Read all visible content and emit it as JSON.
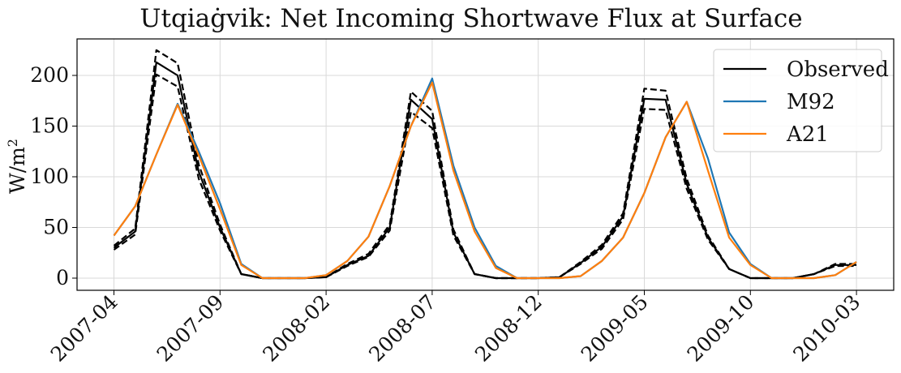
{
  "chart_data": {
    "type": "line",
    "title": "Utqiaġvik: Net Incoming Shortwave Flux at Surface",
    "xlabel": "",
    "ylabel_base": "W/m",
    "ylabel_sup": "2",
    "x_ticks": [
      "2007-04",
      "2007-09",
      "2008-02",
      "2008-07",
      "2008-12",
      "2009-05",
      "2009-10",
      "2010-03"
    ],
    "x": [
      "2007-04",
      "2007-05",
      "2007-06",
      "2007-07",
      "2007-08",
      "2007-09",
      "2007-10",
      "2007-11",
      "2007-12",
      "2008-01",
      "2008-02",
      "2008-03",
      "2008-04",
      "2008-05",
      "2008-06",
      "2008-07",
      "2008-08",
      "2008-09",
      "2008-10",
      "2008-11",
      "2008-12",
      "2009-01",
      "2009-02",
      "2009-03",
      "2009-04",
      "2009-05",
      "2009-06",
      "2009-07",
      "2009-08",
      "2009-09",
      "2009-10",
      "2009-11",
      "2009-12",
      "2010-01",
      "2010-02",
      "2010-03"
    ],
    "ylim": [
      -12,
      236
    ],
    "y_ticks": [
      0,
      50,
      100,
      150,
      200
    ],
    "grid": true,
    "legend_position": "top-right",
    "series": [
      {
        "name": "Observed",
        "color": "#000000",
        "dash": false,
        "values": [
          30,
          46,
          213,
          200,
          105,
          50,
          4,
          0,
          0,
          0,
          1,
          13,
          22,
          50,
          176,
          157,
          45,
          4,
          0,
          0,
          0,
          1,
          15,
          31,
          61,
          177,
          176,
          93,
          40,
          9,
          0,
          0,
          0,
          4,
          13,
          13
        ]
      },
      {
        "name": "",
        "color": "#000000",
        "dash": true,
        "values": [
          32,
          49,
          225,
          212,
          112,
          53,
          4,
          0,
          0,
          0,
          1,
          14,
          24,
          53,
          184,
          165,
          48,
          4,
          0,
          0,
          0,
          1,
          16,
          33,
          64,
          187,
          185,
          98,
          42,
          9,
          0,
          0,
          0,
          4,
          14,
          14
        ]
      },
      {
        "name": "",
        "color": "#000000",
        "dash": true,
        "values": [
          28,
          43,
          201,
          189,
          98,
          47,
          4,
          0,
          0,
          0,
          1,
          12,
          21,
          47,
          164,
          148,
          42,
          4,
          0,
          0,
          0,
          1,
          14,
          29,
          58,
          167,
          166,
          88,
          38,
          9,
          0,
          0,
          0,
          4,
          12,
          12
        ]
      },
      {
        "name": "M92",
        "color": "#1f77b4",
        "dash": false,
        "values": [
          42,
          71,
          122,
          172,
          125,
          74,
          14,
          0,
          0,
          0,
          3,
          17,
          41,
          91,
          150,
          197,
          111,
          50,
          12,
          0,
          0,
          0,
          2,
          17,
          40,
          84,
          139,
          174,
          118,
          45,
          14,
          0,
          0,
          0,
          3,
          16
        ]
      },
      {
        "name": "A21",
        "color": "#ff7f0e",
        "dash": false,
        "values": [
          42,
          71,
          122,
          171,
          121,
          68,
          13,
          0,
          0,
          0,
          3,
          17,
          41,
          91,
          150,
          193,
          106,
          46,
          10,
          0,
          0,
          0,
          2,
          17,
          40,
          84,
          139,
          174,
          106,
          40,
          13,
          0,
          0,
          0,
          3,
          16
        ]
      }
    ]
  }
}
